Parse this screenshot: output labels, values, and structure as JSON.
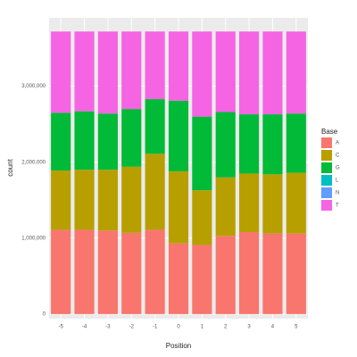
{
  "chart_data": {
    "type": "stacked_bar",
    "x_label": "Position",
    "y_label": "count",
    "legend_title": "Base",
    "categories": [
      "-5",
      "-4",
      "-3",
      "-2",
      "-1",
      "0",
      "1",
      "2",
      "3",
      "4",
      "5"
    ],
    "series": [
      {
        "name": "A",
        "color": "#F8766D",
        "values": [
          1110000,
          1110000,
          1100000,
          1070000,
          1110000,
          930000,
          910000,
          1030000,
          1080000,
          1060000,
          1060000
        ]
      },
      {
        "name": "C",
        "color": "#B79F00",
        "values": [
          780000,
          790000,
          800000,
          870000,
          1000000,
          950000,
          720000,
          770000,
          770000,
          780000,
          800000
        ]
      },
      {
        "name": "G",
        "color": "#00BA38",
        "values": [
          760000,
          770000,
          740000,
          760000,
          720000,
          930000,
          970000,
          860000,
          780000,
          790000,
          780000
        ]
      },
      {
        "name": "L",
        "color": "#00BFC4",
        "values": [
          0,
          0,
          0,
          0,
          0,
          0,
          0,
          0,
          0,
          0,
          0
        ]
      },
      {
        "name": "N",
        "color": "#619CFF",
        "values": [
          0,
          0,
          0,
          0,
          0,
          0,
          0,
          0,
          0,
          0,
          0
        ]
      },
      {
        "name": "T",
        "color": "#F564E3",
        "values": [
          1070000,
          1050000,
          1080000,
          1020000,
          890000,
          910000,
          1120000,
          1060000,
          1090000,
          1090000,
          1080000
        ]
      }
    ],
    "ylim": [
      -60000,
      3900000
    ],
    "yticks": [
      0,
      {
        "value": 1000000,
        "label": "1,000,000"
      },
      {
        "value": 2000000,
        "label": "2,000,000"
      },
      {
        "value": 3000000,
        "label": "3,000,000"
      }
    ],
    "grid": true,
    "legend": "right"
  }
}
